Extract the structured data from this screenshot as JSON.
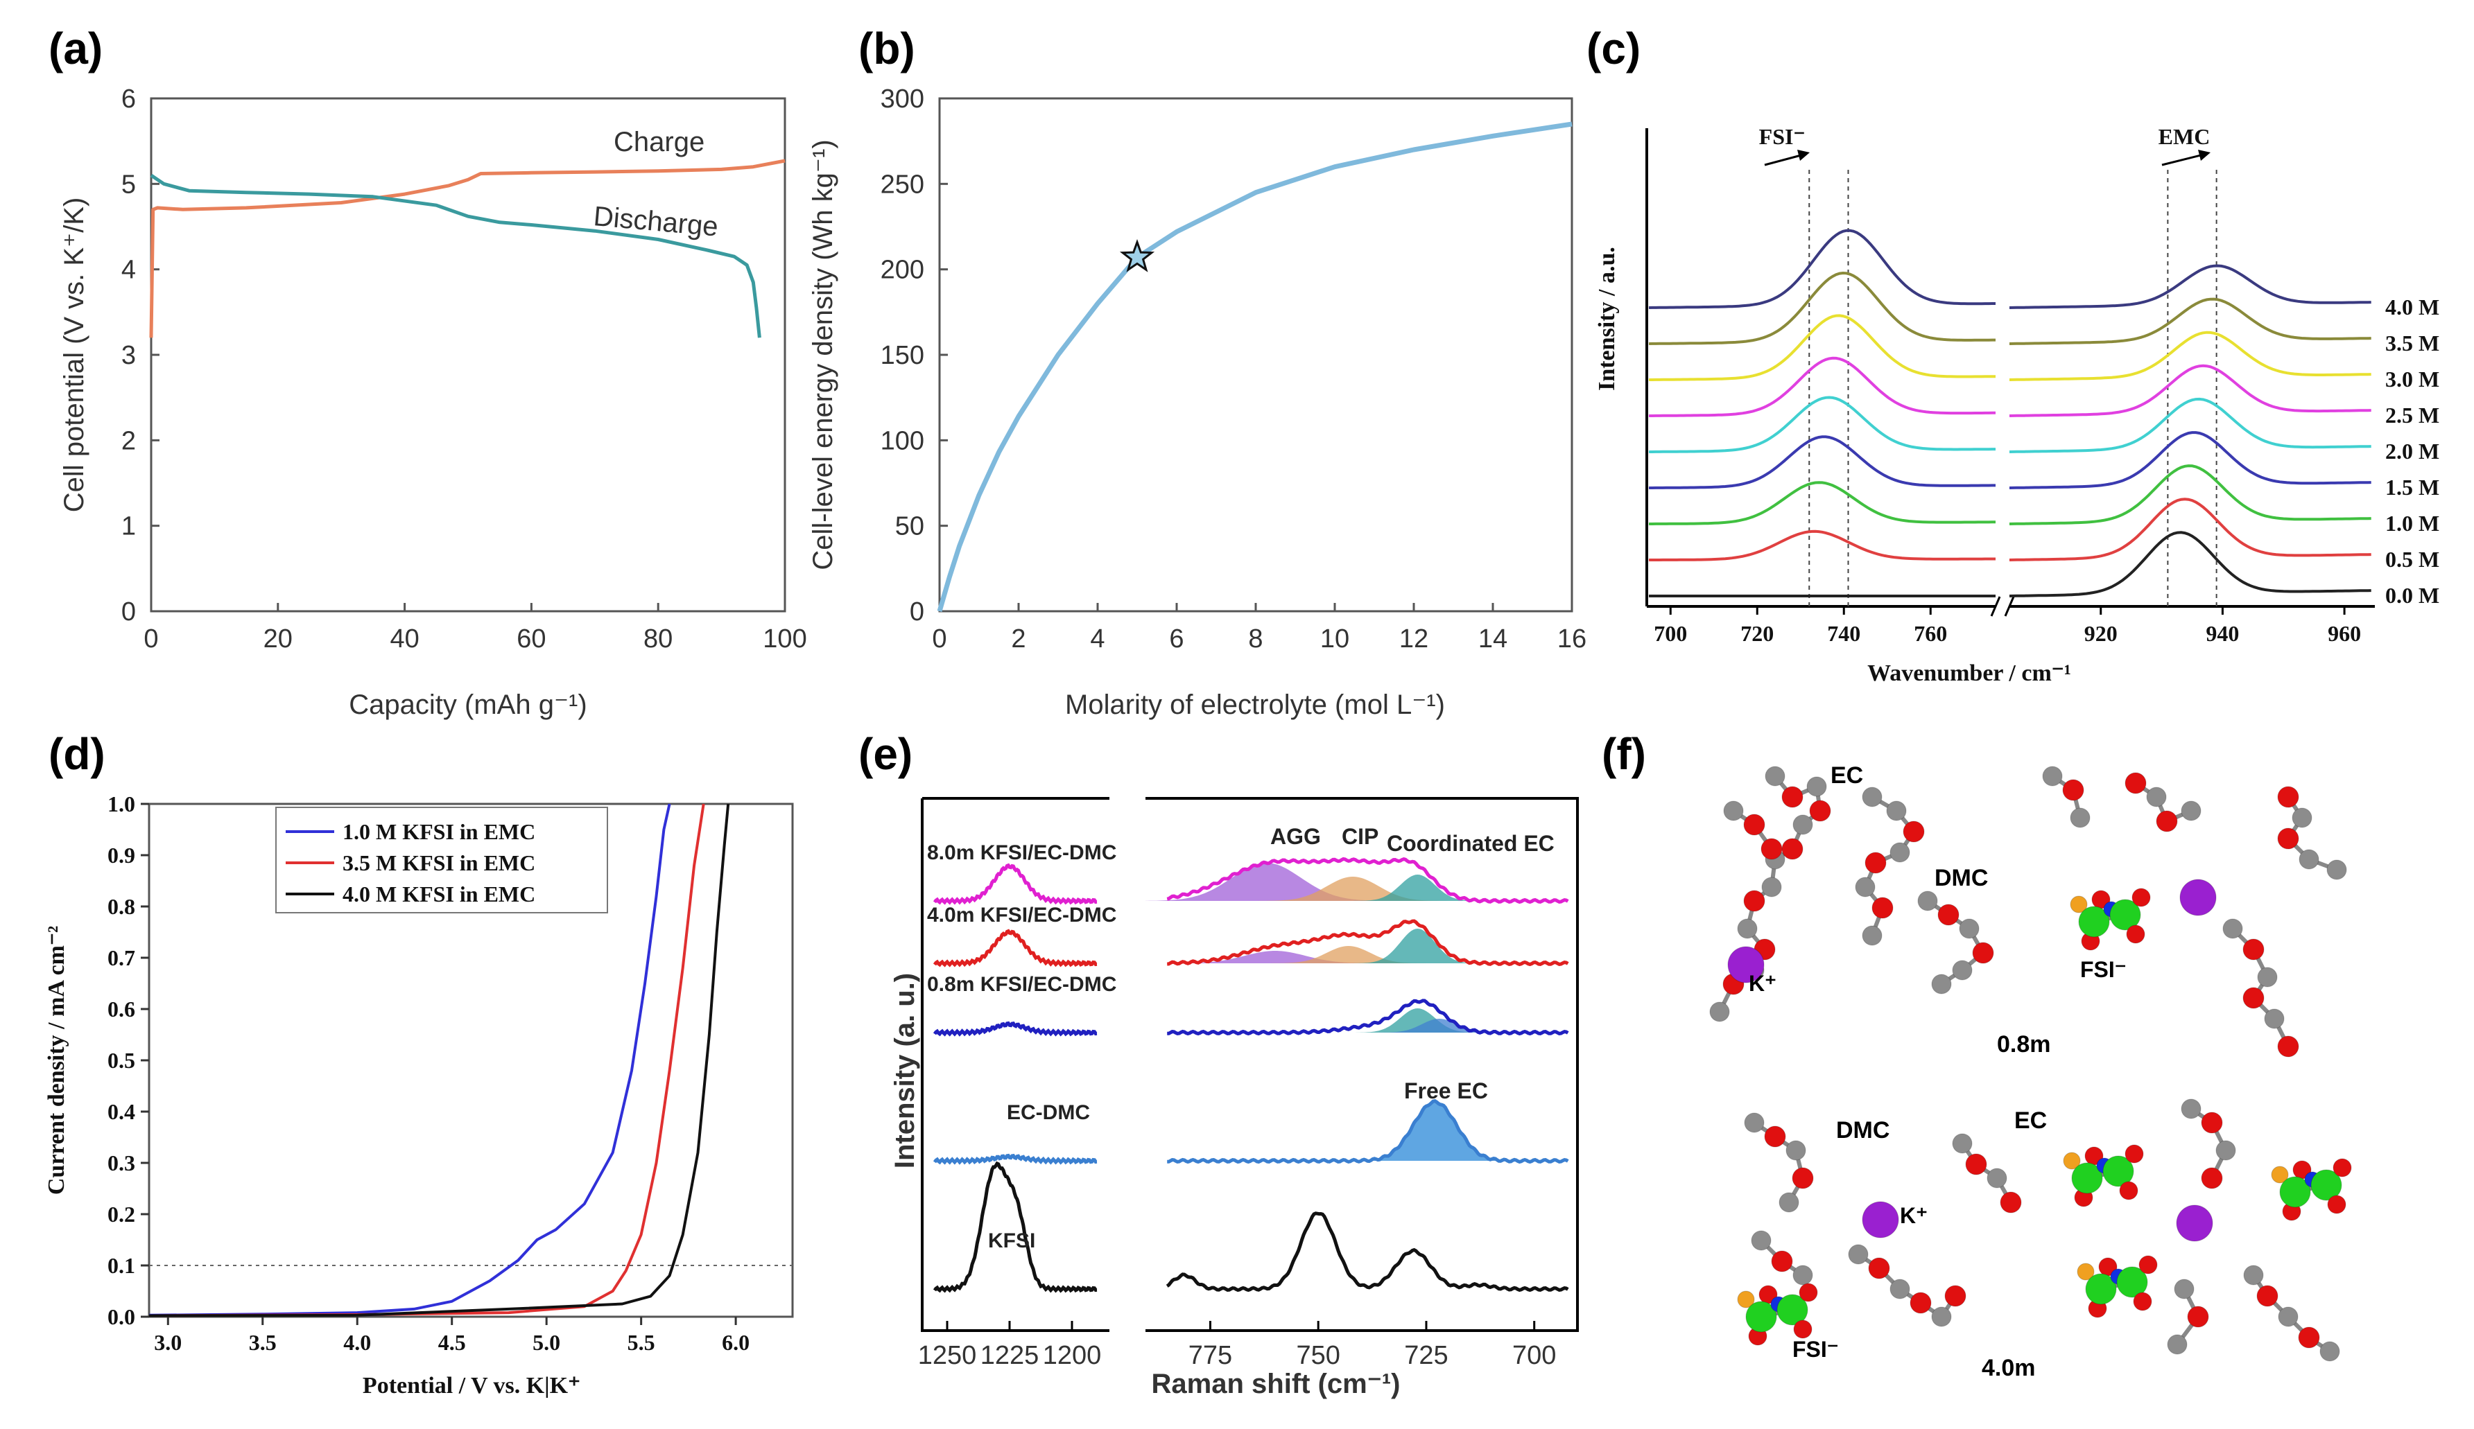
{
  "panels": {
    "a": "(a)",
    "b": "(b)",
    "c": "(c)",
    "d": "(d)",
    "e": "(e)",
    "f": "(f)"
  },
  "chart_data": [
    {
      "id": "a",
      "type": "line",
      "xlabel": "Capacity (mAh g⁻¹)",
      "ylabel": "Cell potential (V vs. K⁺/K)",
      "xlim": [
        0,
        100
      ],
      "ylim": [
        0,
        6
      ],
      "xticks": [
        0,
        20,
        40,
        60,
        80,
        100
      ],
      "yticks": [
        0,
        1,
        2,
        3,
        4,
        5,
        6
      ],
      "series": [
        {
          "name": "Charge",
          "color": "#e8805a",
          "x": [
            0,
            0.3,
            1,
            5,
            15,
            30,
            40,
            47,
            50,
            52,
            60,
            70,
            80,
            90,
            95,
            100
          ],
          "y": [
            3.2,
            4.7,
            4.72,
            4.7,
            4.72,
            4.78,
            4.88,
            4.98,
            5.05,
            5.12,
            5.13,
            5.14,
            5.15,
            5.17,
            5.2,
            5.27
          ]
        },
        {
          "name": "Discharge",
          "color": "#3a9a9e",
          "x": [
            0,
            2,
            6,
            15,
            25,
            35,
            45,
            50,
            55,
            60,
            70,
            80,
            88,
            92,
            94,
            95,
            95.5,
            96
          ],
          "y": [
            5.1,
            5.0,
            4.92,
            4.9,
            4.88,
            4.85,
            4.75,
            4.62,
            4.55,
            4.52,
            4.45,
            4.35,
            4.22,
            4.15,
            4.05,
            3.85,
            3.55,
            3.2
          ]
        }
      ]
    },
    {
      "id": "b",
      "type": "line",
      "xlabel": "Molarity of electrolyte (mol L⁻¹)",
      "ylabel": "Cell-level energy density (Wh kg⁻¹)",
      "xlim": [
        0,
        16
      ],
      "ylim": [
        0,
        300
      ],
      "xticks": [
        0,
        2,
        4,
        6,
        8,
        10,
        12,
        14,
        16
      ],
      "yticks": [
        0,
        50,
        100,
        150,
        200,
        250,
        300
      ],
      "series": [
        {
          "color": "#7fb9dc",
          "x": [
            0,
            0.25,
            0.5,
            1,
            1.5,
            2,
            3,
            4,
            5,
            6,
            8,
            10,
            12,
            14,
            16
          ],
          "y": [
            0,
            20,
            38,
            68,
            93,
            114,
            150,
            180,
            207,
            222,
            245,
            260,
            270,
            278,
            285
          ]
        }
      ],
      "marker": {
        "x": 5,
        "y": 207,
        "symbol": "star"
      }
    },
    {
      "id": "c",
      "type": "line",
      "xlabel": "Wavenumber / cm⁻¹",
      "ylabel": "Intensity / a.u.",
      "xticks_left": [
        700,
        720,
        740,
        760
      ],
      "xticks_right": [
        920,
        940,
        960
      ],
      "peak_labels": [
        "FSI⁻",
        "EMC"
      ],
      "series": [
        {
          "name": "0.0 M",
          "color": "#222222",
          "fsi_peak": 0.0,
          "emc_peak": 1.0
        },
        {
          "name": "0.5 M",
          "color": "#e04040",
          "fsi_peak": 0.25,
          "emc_peak": 0.95
        },
        {
          "name": "1.0 M",
          "color": "#40c040",
          "fsi_peak": 0.45,
          "emc_peak": 0.9
        },
        {
          "name": "1.5 M",
          "color": "#3a3ab0",
          "fsi_peak": 0.6,
          "emc_peak": 0.85
        },
        {
          "name": "2.0 M",
          "color": "#40d0d0",
          "fsi_peak": 0.65,
          "emc_peak": 0.8
        },
        {
          "name": "2.5 M",
          "color": "#e040e0",
          "fsi_peak": 0.7,
          "emc_peak": 0.75
        },
        {
          "name": "3.0 M",
          "color": "#e8e030",
          "fsi_peak": 0.8,
          "emc_peak": 0.7
        },
        {
          "name": "3.5 M",
          "color": "#8a8a3a",
          "fsi_peak": 0.9,
          "emc_peak": 0.65
        },
        {
          "name": "4.0 M",
          "color": "#3a3a80",
          "fsi_peak": 1.0,
          "emc_peak": 0.6
        }
      ]
    },
    {
      "id": "d",
      "type": "line",
      "xlabel": "Potential / V vs. K|K⁺",
      "ylabel": "Current density / mA cm⁻²",
      "xlim": [
        2.9,
        6.3
      ],
      "ylim": [
        0,
        1.0
      ],
      "xticks": [
        "3.0",
        "3.5",
        "4.0",
        "4.5",
        "5.0",
        "5.5",
        "6.0"
      ],
      "yticks": [
        "0.0",
        "0.1",
        "0.2",
        "0.3",
        "0.4",
        "0.5",
        "0.6",
        "0.7",
        "0.8",
        "0.9",
        "1.0"
      ],
      "legend_position": "top-center",
      "series": [
        {
          "name": "1.0 M KFSI in EMC",
          "color": "#3030d8",
          "x": [
            2.9,
            3.5,
            4.0,
            4.3,
            4.5,
            4.7,
            4.85,
            4.95,
            5.05,
            5.2,
            5.35,
            5.45,
            5.52,
            5.58,
            5.62,
            5.65
          ],
          "y": [
            0.003,
            0.005,
            0.008,
            0.015,
            0.03,
            0.07,
            0.11,
            0.15,
            0.17,
            0.22,
            0.32,
            0.48,
            0.65,
            0.82,
            0.95,
            1.0
          ]
        },
        {
          "name": "3.5 M KFSI in EMC",
          "color": "#e03030",
          "x": [
            2.9,
            4.0,
            4.8,
            5.2,
            5.35,
            5.42,
            5.5,
            5.58,
            5.65,
            5.72,
            5.78,
            5.83
          ],
          "y": [
            0.002,
            0.004,
            0.008,
            0.02,
            0.05,
            0.09,
            0.16,
            0.3,
            0.48,
            0.68,
            0.88,
            1.0
          ]
        },
        {
          "name": "4.0 M KFSI in EMC",
          "color": "#111111",
          "x": [
            2.9,
            4.0,
            4.8,
            5.4,
            5.55,
            5.65,
            5.72,
            5.8,
            5.86,
            5.9,
            5.94,
            5.96
          ],
          "y": [
            0.002,
            0.003,
            0.015,
            0.025,
            0.04,
            0.08,
            0.16,
            0.32,
            0.55,
            0.75,
            0.92,
            1.0
          ]
        }
      ],
      "reference_line": 0.1
    },
    {
      "id": "e",
      "type": "line",
      "xlabel": "Raman shift (cm⁻¹)",
      "ylabel": "Intensity (a. u.)",
      "xticks_left": [
        1250,
        1225,
        1200
      ],
      "xticks_right": [
        775,
        750,
        725,
        700
      ],
      "series": [
        {
          "name": "8.0m KFSI/EC-DMC",
          "color": "#e020d0"
        },
        {
          "name": "4.0m KFSI/EC-DMC",
          "color": "#e02020"
        },
        {
          "name": "0.8m KFSI/EC-DMC",
          "color": "#2020c0"
        },
        {
          "name": "EC-DMC",
          "color": "#3a7fd0"
        },
        {
          "name": "KFSI",
          "color": "#111111"
        }
      ],
      "annotations": [
        "AGG",
        "CIP",
        "Coordinated EC",
        "Free EC"
      ]
    }
  ],
  "panel_f": {
    "labels_top": {
      "ec": "EC",
      "dmc": "DMC",
      "k": "K⁺",
      "fsi": "FSI⁻",
      "conc": "0.8m"
    },
    "labels_bottom": {
      "ec": "EC",
      "dmc": "DMC",
      "k": "K⁺",
      "fsi": "FSI⁻",
      "conc": "4.0m"
    }
  }
}
